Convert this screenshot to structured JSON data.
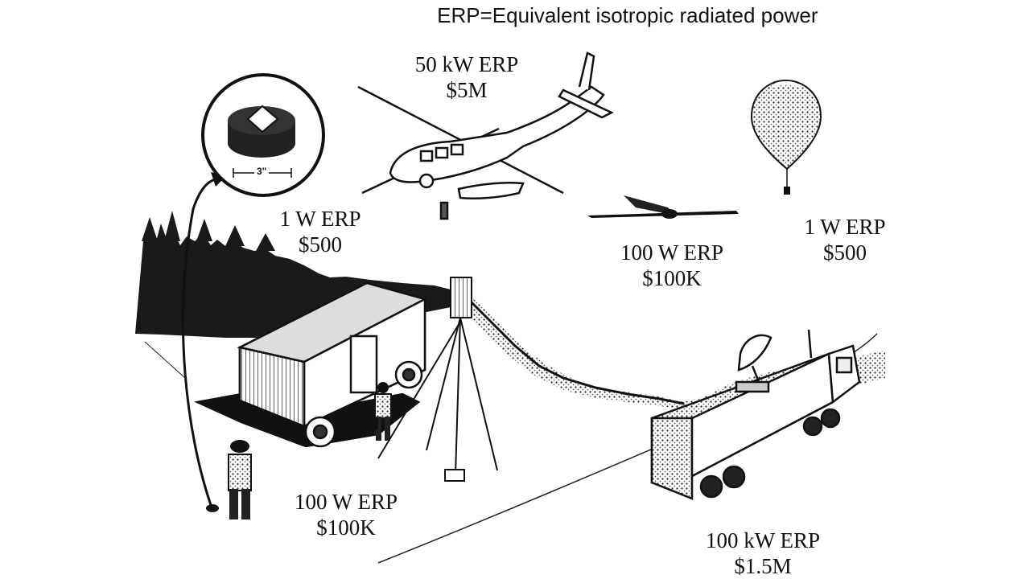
{
  "title": "ERP=Equivalent isotropic radiated power",
  "inset": {
    "dimension": "3\""
  },
  "labels": {
    "helicopter": {
      "power": "50 kW ERP",
      "cost": "$5M"
    },
    "small_sensor": {
      "power": "1 W ERP",
      "cost": "$500"
    },
    "uav": {
      "power": "100 W ERP",
      "cost": "$100K"
    },
    "balloon": {
      "power": "1 W ERP",
      "cost": "$500"
    },
    "van": {
      "power": "100 W ERP",
      "cost": "$100K"
    },
    "truck": {
      "power": "100 kW ERP",
      "cost": "$1.5M"
    }
  }
}
